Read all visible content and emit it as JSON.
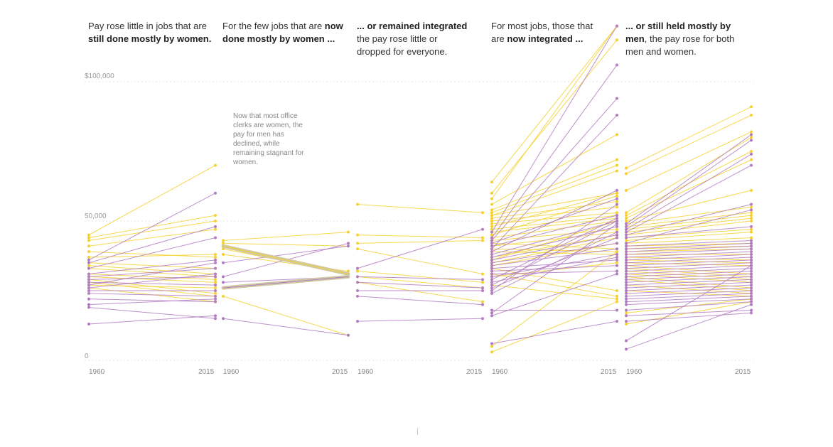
{
  "titles": [
    {
      "pre": "Pay rose little in jobs that are ",
      "bold": "still done mostly by women.",
      "post": ""
    },
    {
      "pre": "For the few jobs that are ",
      "bold": "now done mostly by women ...",
      "post": ""
    },
    {
      "pre": "",
      "bold": "... or remained integrated",
      "post": " the pay rose little or dropped for everyone."
    },
    {
      "pre": "For most jobs, those that are ",
      "bold": "now integrated ...",
      "post": ""
    },
    {
      "pre": "",
      "bold": "... or still held mostly by men",
      "post": ", the pay rose for both men and women."
    }
  ],
  "annotation": "Now that most office clerks are women, the pay for men has declined, while remaining stagnant for women.",
  "y_axis_labels": [
    "$100,000",
    "50,000",
    "0"
  ],
  "colors": {
    "women": "#f5d130",
    "men": "#b27cc2",
    "highlight": "#cfc9a4",
    "grid": "#e4e4e4"
  },
  "chart_data": {
    "type": "line",
    "x": [
      1960,
      2015
    ],
    "ylim": [
      0,
      100000
    ],
    "panels": [
      {
        "x_ticks": [
          "1960",
          "2015"
        ],
        "women": [
          [
            45000,
            70000
          ],
          [
            44000,
            52000
          ],
          [
            43000,
            50000
          ],
          [
            41000,
            47000
          ],
          [
            39000,
            37000
          ],
          [
            37000,
            38000
          ],
          [
            35000,
            33000
          ],
          [
            34000,
            31000
          ],
          [
            33000,
            30000
          ],
          [
            31000,
            29000
          ],
          [
            30000,
            28000
          ],
          [
            29000,
            24000
          ],
          [
            28000,
            23000
          ],
          [
            27000,
            26000
          ],
          [
            26000,
            21000
          ]
        ],
        "men": [
          [
            36000,
            60000
          ],
          [
            35000,
            48000
          ],
          [
            33000,
            44000
          ],
          [
            31000,
            36000
          ],
          [
            30000,
            33000
          ],
          [
            29000,
            30000
          ],
          [
            28000,
            27000
          ],
          [
            27000,
            35000
          ],
          [
            26000,
            31000
          ],
          [
            25000,
            25000
          ],
          [
            24000,
            23000
          ],
          [
            22000,
            21000
          ],
          [
            20000,
            22000
          ],
          [
            19000,
            15000
          ],
          [
            13000,
            16000
          ]
        ]
      },
      {
        "x_ticks": [
          "1960",
          "2015"
        ],
        "highlight": [
          [
            41000,
            31000
          ],
          [
            26000,
            30000
          ]
        ],
        "women": [
          [
            43000,
            46000
          ],
          [
            42000,
            41000
          ],
          [
            40000,
            31000
          ],
          [
            38000,
            32000
          ],
          [
            23000,
            9000
          ]
        ],
        "men": [
          [
            35000,
            41000
          ],
          [
            30000,
            42000
          ],
          [
            28000,
            30000
          ],
          [
            15000,
            9000
          ]
        ]
      },
      {
        "x_ticks": [
          "1960",
          "2015"
        ],
        "women": [
          [
            56000,
            53000
          ],
          [
            45000,
            44000
          ],
          [
            42000,
            43000
          ],
          [
            40000,
            31000
          ],
          [
            32000,
            28000
          ],
          [
            30000,
            26000
          ],
          [
            28000,
            21000
          ]
        ],
        "men": [
          [
            33000,
            47000
          ],
          [
            30000,
            29000
          ],
          [
            28000,
            26000
          ],
          [
            25000,
            25000
          ],
          [
            23000,
            20000
          ],
          [
            14000,
            15000
          ]
        ]
      },
      {
        "x_ticks": [
          "1960",
          "2015"
        ],
        "women": [
          [
            64000,
            120000
          ],
          [
            60000,
            115000
          ],
          [
            58000,
            120000
          ],
          [
            56000,
            81000
          ],
          [
            54000,
            72000
          ],
          [
            53000,
            70000
          ],
          [
            52000,
            68000
          ],
          [
            52000,
            60000
          ],
          [
            51000,
            57000
          ],
          [
            50000,
            55000
          ],
          [
            49000,
            53000
          ],
          [
            48000,
            60000
          ],
          [
            47000,
            52000
          ],
          [
            46000,
            51000
          ],
          [
            45000,
            59000
          ],
          [
            44000,
            50000
          ],
          [
            43000,
            47000
          ],
          [
            42000,
            40000
          ],
          [
            41000,
            46000
          ],
          [
            40000,
            39000
          ],
          [
            39000,
            38000
          ],
          [
            37000,
            45000
          ],
          [
            36000,
            50000
          ],
          [
            35000,
            44000
          ],
          [
            34000,
            42000
          ],
          [
            33000,
            25000
          ],
          [
            31000,
            23000
          ],
          [
            30000,
            35000
          ],
          [
            27000,
            22000
          ],
          [
            5000,
            39000
          ],
          [
            3000,
            21000
          ]
        ],
        "men": [
          [
            46000,
            120000
          ],
          [
            44000,
            106000
          ],
          [
            43000,
            94000
          ],
          [
            42000,
            58000
          ],
          [
            41000,
            52000
          ],
          [
            40000,
            88000
          ],
          [
            39000,
            61000
          ],
          [
            38000,
            50000
          ],
          [
            37000,
            48000
          ],
          [
            36000,
            45000
          ],
          [
            35000,
            42000
          ],
          [
            34000,
            40000
          ],
          [
            33000,
            36000
          ],
          [
            32000,
            34000
          ],
          [
            31000,
            32000
          ],
          [
            30000,
            38000
          ],
          [
            29000,
            51000
          ],
          [
            28000,
            37000
          ],
          [
            27000,
            50000
          ],
          [
            26000,
            44000
          ],
          [
            25000,
            56000
          ],
          [
            24000,
            46000
          ],
          [
            18000,
            18000
          ],
          [
            17000,
            49000
          ],
          [
            16000,
            31000
          ],
          [
            6000,
            14000
          ]
        ]
      },
      {
        "x_ticks": [
          "1960",
          "2015"
        ],
        "women": [
          [
            69000,
            91000
          ],
          [
            67000,
            88000
          ],
          [
            61000,
            82000
          ],
          [
            53000,
            80000
          ],
          [
            52000,
            75000
          ],
          [
            51000,
            72000
          ],
          [
            50000,
            61000
          ],
          [
            49000,
            55000
          ],
          [
            48000,
            53000
          ],
          [
            47000,
            52000
          ],
          [
            46000,
            51000
          ],
          [
            45000,
            50000
          ],
          [
            44000,
            47000
          ],
          [
            43000,
            46000
          ],
          [
            42000,
            44000
          ],
          [
            41000,
            42000
          ],
          [
            40000,
            41000
          ],
          [
            39000,
            40000
          ],
          [
            38000,
            38000
          ],
          [
            37000,
            36000
          ],
          [
            36000,
            35000
          ],
          [
            35000,
            34000
          ],
          [
            34000,
            31000
          ],
          [
            33000,
            30000
          ],
          [
            32000,
            29000
          ],
          [
            31000,
            28000
          ],
          [
            30000,
            26000
          ],
          [
            29000,
            25000
          ],
          [
            27000,
            24000
          ],
          [
            25000,
            23000
          ],
          [
            17000,
            22000
          ],
          [
            13000,
            21000
          ]
        ],
        "men": [
          [
            49000,
            81000
          ],
          [
            48000,
            79000
          ],
          [
            47000,
            74000
          ],
          [
            46000,
            70000
          ],
          [
            45000,
            56000
          ],
          [
            44000,
            48000
          ],
          [
            42000,
            54000
          ],
          [
            41000,
            43000
          ],
          [
            40000,
            42000
          ],
          [
            39000,
            41000
          ],
          [
            38000,
            40000
          ],
          [
            37000,
            39000
          ],
          [
            36000,
            38000
          ],
          [
            35000,
            37000
          ],
          [
            34000,
            36000
          ],
          [
            33000,
            35000
          ],
          [
            32000,
            34000
          ],
          [
            31000,
            33000
          ],
          [
            30000,
            32000
          ],
          [
            29000,
            31000
          ],
          [
            28000,
            30000
          ],
          [
            27000,
            29000
          ],
          [
            26000,
            28000
          ],
          [
            25000,
            27000
          ],
          [
            24000,
            26000
          ],
          [
            23000,
            25000
          ],
          [
            22000,
            24000
          ],
          [
            21000,
            23000
          ],
          [
            20000,
            22000
          ],
          [
            18000,
            21000
          ],
          [
            16000,
            18000
          ],
          [
            14000,
            17000
          ],
          [
            7000,
            34000
          ],
          [
            4000,
            20000
          ]
        ]
      }
    ]
  }
}
